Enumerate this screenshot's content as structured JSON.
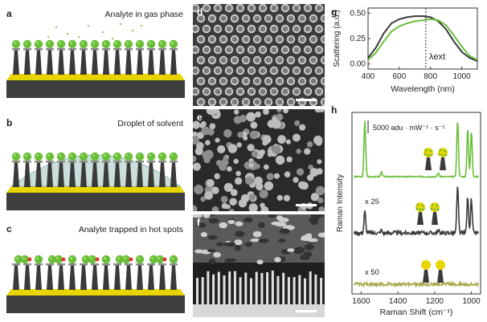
{
  "panels": {
    "a": {
      "label": "a",
      "title": "Analyte in gas phase"
    },
    "b": {
      "label": "b",
      "title": "Droplet of solvent"
    },
    "c": {
      "label": "c",
      "title": "Analyte trapped in hot spots"
    },
    "d": {
      "label": "d"
    },
    "e": {
      "label": "e"
    },
    "f": {
      "label": "f"
    },
    "g": {
      "label": "g"
    },
    "h": {
      "label": "h"
    }
  },
  "colors": {
    "green": "#6abf3a",
    "dark": "#3a3a3a",
    "olive": "#a8a84a",
    "gold": "#e8d400",
    "sem_bg": "#2b2b2b"
  },
  "chart_data": [
    {
      "panel": "g",
      "type": "line",
      "xlabel": "Wavelength (nm)",
      "ylabel": "Scattering (a.u.)",
      "xlim": [
        400,
        1100
      ],
      "ylim": [
        -0.05,
        0.55
      ],
      "xticks": [
        "400",
        "600",
        "800",
        "1000"
      ],
      "yticks": [
        "0.00",
        "0.25",
        "0.50"
      ],
      "annotation": "λext",
      "vline_x": 770,
      "series": [
        {
          "color": "#3a3a3a",
          "x": [
            400,
            450,
            500,
            550,
            600,
            650,
            700,
            750,
            800,
            850,
            900,
            950,
            1000,
            1050,
            1100
          ],
          "y": [
            0.06,
            0.16,
            0.3,
            0.4,
            0.44,
            0.46,
            0.47,
            0.47,
            0.46,
            0.42,
            0.34,
            0.22,
            0.12,
            0.06,
            0.03
          ]
        },
        {
          "color": "#6abf3a",
          "x": [
            400,
            450,
            500,
            550,
            600,
            650,
            700,
            750,
            800,
            850,
            900,
            950,
            1000,
            1050,
            1100
          ],
          "y": [
            0.04,
            0.11,
            0.22,
            0.32,
            0.37,
            0.4,
            0.42,
            0.43,
            0.44,
            0.43,
            0.38,
            0.28,
            0.17,
            0.08,
            0.04
          ]
        }
      ]
    },
    {
      "panel": "h",
      "type": "line",
      "xlabel": "Raman Shift (cm⁻¹)",
      "ylabel": "Raman Intensity",
      "xlim": [
        1650,
        950
      ],
      "xticks": [
        "1600",
        "1400",
        "1200",
        "1000"
      ],
      "scalebar_label": "5000 adu · mW⁻¹ · s⁻¹",
      "multipliers": [
        "x 25",
        "x 50"
      ],
      "peaks": [
        1580,
        1490,
        1180,
        1075,
        1020,
        1000
      ],
      "series": [
        {
          "color": "#6abf3a",
          "baseline": 0.0,
          "heights": [
            1.0,
            0.08,
            0.06,
            1.0,
            0.85,
            0.8
          ]
        },
        {
          "color": "#3a3a3a",
          "baseline": 0.0,
          "heights": [
            0.45,
            0.05,
            0.04,
            0.95,
            0.75,
            0.7
          ]
        },
        {
          "color": "#a8a84a",
          "baseline": 0.0,
          "heights": [
            0.0,
            0.0,
            0.0,
            0.0,
            0.0,
            0.0
          ]
        }
      ]
    }
  ]
}
